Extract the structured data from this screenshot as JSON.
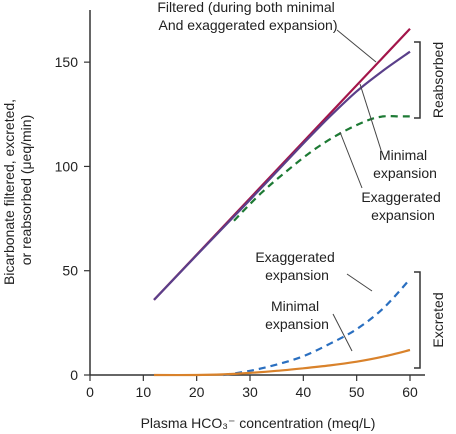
{
  "chart_data": {
    "type": "line",
    "title": "",
    "xlabel": "Plasma HCO₃⁻ concentration (meq/L)",
    "ylabel_lines": [
      "Bicarbonate filtered, excreted,",
      "or reabsorbed (μeq/min)"
    ],
    "xlim": [
      0,
      60
    ],
    "ylim": [
      0,
      175
    ],
    "xticks": [
      0,
      10,
      20,
      30,
      40,
      50,
      60
    ],
    "yticks": [
      0,
      50,
      100,
      150
    ],
    "grid": false,
    "series": [
      {
        "name": "Filtered (during both minimal And exaggerated expansion)",
        "color": "#a3154a",
        "style": "solid",
        "x": [
          12,
          60
        ],
        "y": [
          36,
          166
        ]
      },
      {
        "name": "Reabsorbed — Minimal expansion",
        "color": "#5a3f8a",
        "style": "solid",
        "x": [
          12,
          20,
          30,
          40,
          45,
          50,
          55,
          60
        ],
        "y": [
          36,
          57.5,
          84,
          111,
          124,
          136,
          146,
          155
        ]
      },
      {
        "name": "Reabsorbed — Exaggerated expansion",
        "color": "#1d7a34",
        "style": "dashed",
        "x": [
          27,
          32,
          37,
          42,
          47,
          52,
          55,
          58,
          60
        ],
        "y": [
          74,
          87,
          98,
          108,
          116,
          122,
          124,
          124,
          124
        ]
      },
      {
        "name": "Excreted — Exaggerated expansion",
        "color": "#2a6fc0",
        "style": "dashed",
        "x": [
          25,
          30,
          35,
          40,
          45,
          50,
          55,
          60
        ],
        "y": [
          0,
          2,
          5,
          9,
          15,
          22,
          32,
          46
        ]
      },
      {
        "name": "Excreted — Minimal expansion",
        "color": "#d9822b",
        "style": "solid",
        "x": [
          12,
          20,
          25,
          30,
          35,
          40,
          45,
          50,
          55,
          60
        ],
        "y": [
          0,
          0,
          0.3,
          1,
          2,
          3.2,
          4.6,
          6.4,
          8.8,
          12
        ]
      }
    ],
    "annotations": {
      "filtered": [
        "Filtered (during both minimal",
        "And exaggerated expansion)"
      ],
      "minimal_top": [
        "Minimal",
        "expansion"
      ],
      "exaggerated_top": [
        "Exaggerated",
        "expansion"
      ],
      "exaggerated_bottom": [
        "Exaggerated",
        "expansion"
      ],
      "minimal_bottom": [
        "Minimal",
        "expansion"
      ]
    },
    "brackets": {
      "reabsorbed": "Reabsorbed",
      "excreted": "Excreted"
    }
  }
}
